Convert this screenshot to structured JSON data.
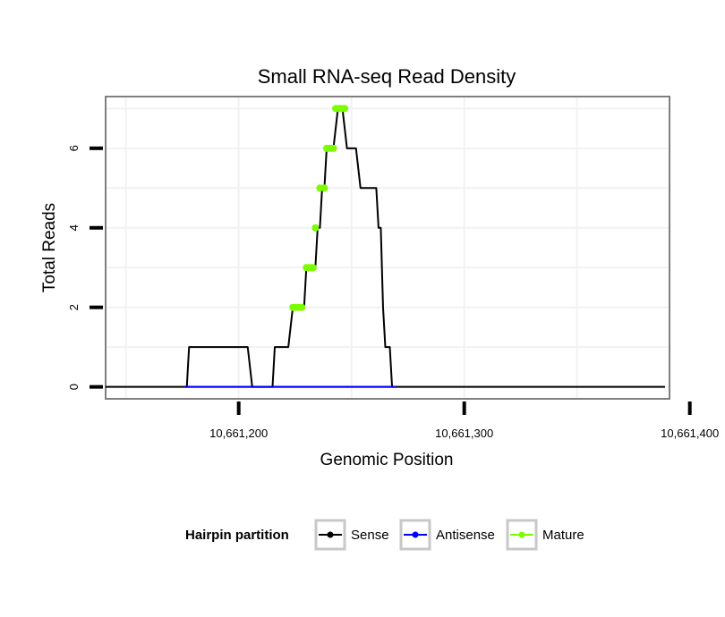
{
  "chart_data": {
    "type": "line",
    "title": "Small RNA-seq Read Density",
    "xlabel": "Genomic Position",
    "ylabel": "Total Reads",
    "xlim": [
      10661141,
      10661391
    ],
    "ylim": [
      -0.3,
      7.3
    ],
    "x_ticks": [
      10661200,
      10661300,
      10661400
    ],
    "x_tick_labels": [
      "10,661,200",
      "10,661,300",
      "10,661,400"
    ],
    "y_ticks": [
      0,
      2,
      4,
      6
    ],
    "y_tick_labels": [
      "0",
      "2",
      "4",
      "6"
    ],
    "grid": true,
    "legend": {
      "title": "Hairpin partition",
      "position": "bottom",
      "entries": [
        "Sense",
        "Antisense",
        "Mature"
      ]
    },
    "series": [
      {
        "name": "Sense",
        "color": "#000000",
        "x": [
          10661141,
          10661177,
          10661178,
          10661180,
          10661204,
          10661206,
          10661215,
          10661216,
          10661222,
          10661224,
          10661227,
          10661229,
          10661230,
          10661231,
          10661234,
          10661235,
          10661236,
          10661237,
          10661238,
          10661239,
          10661240,
          10661241,
          10661242,
          10661244,
          10661245,
          10661246,
          10661248,
          10661249,
          10661250,
          10661251,
          10661252,
          10661254,
          10661256,
          10661257,
          10661261,
          10661262,
          10661263,
          10661264,
          10661265,
          10661266,
          10661267,
          10661268,
          10661270,
          10661389
        ],
        "y": [
          0,
          0,
          1,
          1,
          1,
          0,
          0,
          1,
          1,
          2,
          2,
          2,
          3,
          3,
          3,
          4,
          4,
          5,
          5,
          6,
          6,
          6,
          6,
          7,
          7,
          7,
          6,
          6,
          6,
          6,
          6,
          5,
          5,
          5,
          5,
          4,
          4,
          2,
          1,
          1,
          1,
          0,
          0,
          0
        ]
      },
      {
        "name": "Antisense",
        "color": "#0000ff",
        "x": [
          10661176,
          10661270
        ],
        "y": [
          0,
          0
        ]
      },
      {
        "name": "Mature",
        "color": "#7cfc00",
        "x": [
          10661224,
          10661225,
          10661226,
          10661227,
          10661228,
          10661230,
          10661231,
          10661232,
          10661233,
          10661234,
          10661236,
          10661238,
          10661239,
          10661240,
          10661241,
          10661242,
          10661243,
          10661244,
          10661245,
          10661246,
          10661247
        ],
        "y": [
          2,
          2,
          2,
          2,
          2,
          3,
          3,
          3,
          3,
          4,
          5,
          5,
          6,
          6,
          6,
          6,
          7,
          7,
          7,
          7,
          7
        ]
      }
    ]
  }
}
